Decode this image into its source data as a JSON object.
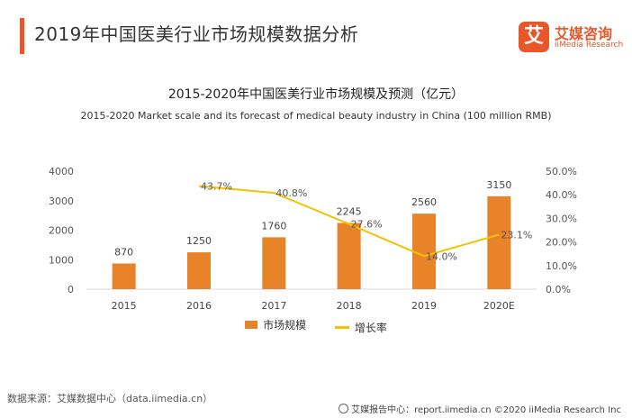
{
  "header": {
    "title": "2019年中国医美行业市场规模数据分析",
    "accent_color": "#e8562a"
  },
  "brand": {
    "mark": "艾",
    "name_cn": "艾媒咨询",
    "name_en": "iiMedia Research",
    "color": "#e8562a"
  },
  "chart_data": {
    "type": "bar+line",
    "title": "2015-2020年中国医美行业市场规模及预测（亿元）",
    "subtitle": "2015-2020 Market scale and its forecast of medical beauty industry in China (100 million RMB)",
    "categories": [
      "2015",
      "2016",
      "2017",
      "2018",
      "2019",
      "2020E"
    ],
    "series": [
      {
        "name": "市场规模",
        "type": "bar",
        "axis": "left",
        "color": "#e8832a",
        "values": [
          870,
          1250,
          1760,
          2245,
          2560,
          3150
        ],
        "labels": [
          "870",
          "1250",
          "1760",
          "2245",
          "2560",
          "3150"
        ]
      },
      {
        "name": "增长率",
        "type": "line",
        "axis": "right",
        "color": "#f5c200",
        "values": [
          null,
          43.7,
          40.8,
          27.6,
          14.0,
          23.1
        ],
        "labels": [
          "",
          "43.7%",
          "40.8%",
          "27.6%",
          "14.0%",
          "23.1%"
        ]
      }
    ],
    "left_axis": {
      "min": 0,
      "max": 4000,
      "ticks": [
        "0",
        "1000",
        "2000",
        "3000",
        "4000"
      ]
    },
    "right_axis": {
      "min": 0,
      "max": 50,
      "ticks": [
        "0.0%",
        "10.0%",
        "20.0%",
        "30.0%",
        "40.0%",
        "50.0%"
      ]
    },
    "legend": "bottom-center",
    "grid": false
  },
  "footer": {
    "source": "数据来源：艾媒数据中心（data.iimedia.cn）",
    "credit": "艾媒报告中心：report.iimedia.cn  ©2020  iiMedia Research  Inc"
  }
}
